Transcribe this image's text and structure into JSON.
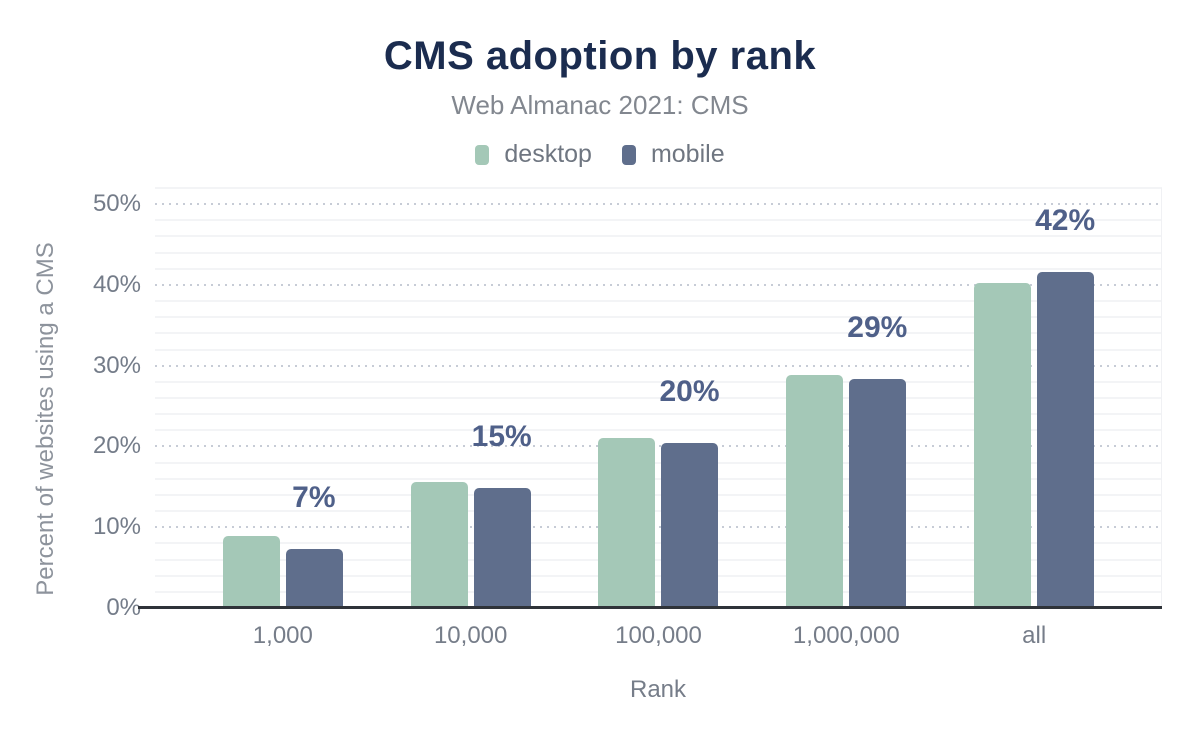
{
  "figure": {
    "title": "CMS adoption by rank",
    "subtitle": "Web Almanac 2021: CMS"
  },
  "legend": {
    "items": [
      {
        "label": "desktop",
        "color": "#a4c8b7"
      },
      {
        "label": "mobile",
        "color": "#5f6e8c"
      }
    ]
  },
  "colors": {
    "title": "#1b2c4f",
    "subtitle": "#82878f",
    "axis_text": "#767d89",
    "annotation": "#4f6089",
    "axis_line": "#2f3339",
    "grid_major_dotted": "#c7ccd6",
    "grid_minor": "#f3f4f6",
    "desktop_bar": "#a4c8b7",
    "mobile_bar": "#5f6e8c"
  },
  "chart_data": {
    "type": "bar",
    "title": "CMS adoption by rank",
    "subtitle": "Web Almanac 2021: CMS",
    "categories": [
      "1,000",
      "10,000",
      "100,000",
      "1,000,000",
      "all"
    ],
    "series": [
      {
        "name": "desktop",
        "color": "#a4c8b7",
        "values": [
          8.9,
          15.6,
          21.0,
          28.8,
          40.3
        ]
      },
      {
        "name": "mobile",
        "color": "#5f6e8c",
        "values": [
          7.3,
          14.9,
          20.4,
          28.4,
          41.6
        ]
      }
    ],
    "annotations": [
      "7%",
      "15%",
      "20%",
      "29%",
      "42%"
    ],
    "annotation_anchor": "above mobile bar",
    "xlabel": "Rank",
    "ylabel": "Percent of websites using a CMS",
    "y_ticks": [
      "0%",
      "10%",
      "20%",
      "30%",
      "40%",
      "50%"
    ],
    "y_tick_values": [
      0,
      10,
      20,
      30,
      40,
      50
    ],
    "ylim": [
      0,
      52
    ],
    "grid": "horizontal: dotted major every 10%, faint solid minor every 2%",
    "legend_position": "top"
  }
}
